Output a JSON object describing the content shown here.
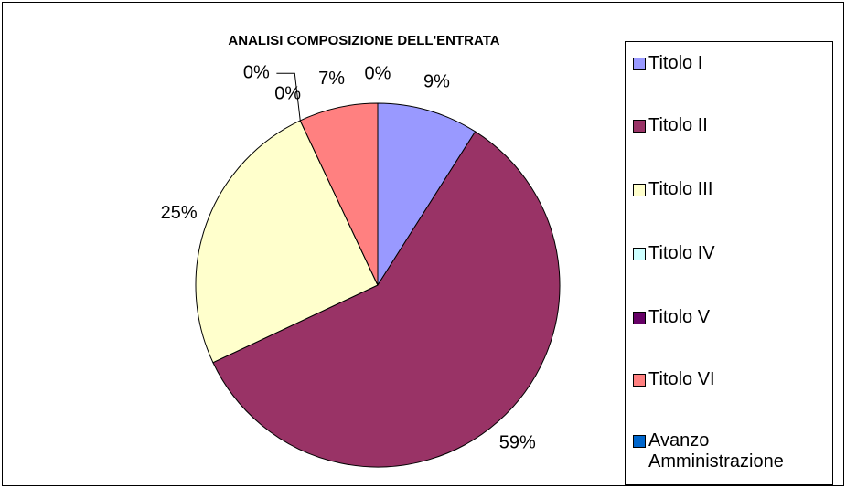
{
  "chart_data": {
    "type": "pie",
    "title": "ANALISI COMPOSIZIONE DELL'ENTRATA",
    "categories": [
      "Titolo I",
      "Titolo II",
      "Titolo III",
      "Titolo IV",
      "Titolo V",
      "Titolo VI",
      "Avanzo Amministrazione"
    ],
    "values": [
      9,
      59,
      25,
      0,
      0,
      7,
      0
    ],
    "value_labels": [
      "9%",
      "59%",
      "25%",
      "0%",
      "0%",
      "7%",
      "0%"
    ],
    "colors": [
      "#9999ff",
      "#993366",
      "#ffffcc",
      "#ccffff",
      "#660066",
      "#ff8080",
      "#0066cc"
    ],
    "legend": "right"
  }
}
